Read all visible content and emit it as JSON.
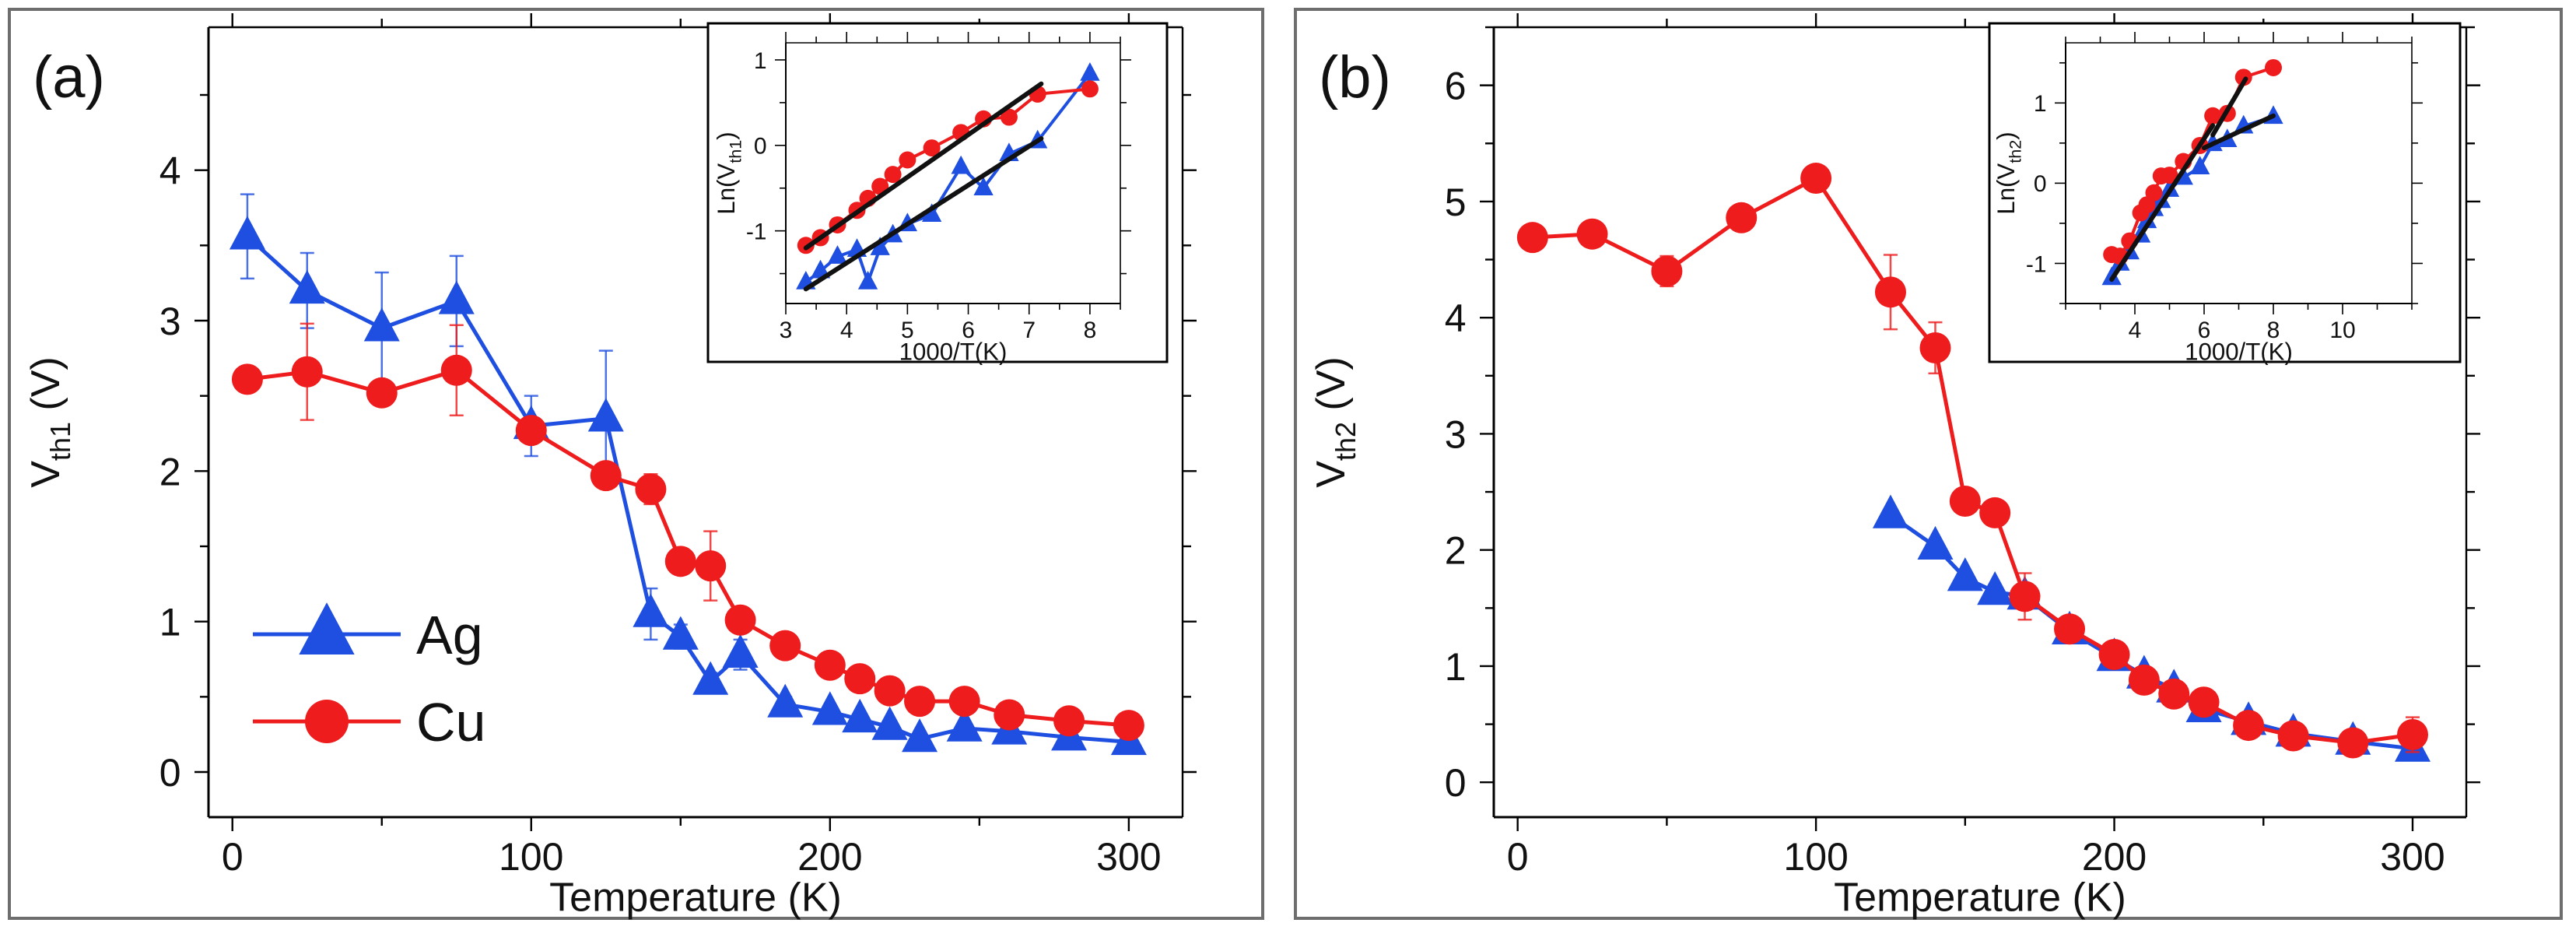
{
  "colors": {
    "ag": "#1f4fe0",
    "cu": "#ee1c1c",
    "fit": "#111111",
    "frame": "#6e6e6e"
  },
  "legend": {
    "entries": [
      {
        "name": "Ag"
      },
      {
        "name": "Cu"
      }
    ]
  },
  "chart_data": [
    {
      "type": "line",
      "panel_label": "(a)",
      "xlabel": "Temperature (K)",
      "ylabel": {
        "base": "V",
        "sub": "th1",
        "suffix": " (V)"
      },
      "xlim": [
        -8,
        318
      ],
      "ylim": [
        -0.3,
        4.95
      ],
      "xticks": [
        0,
        100,
        200,
        300
      ],
      "yticks": [
        0,
        1,
        2,
        3,
        4
      ],
      "series": [
        {
          "name": "Ag",
          "marker": "triangle",
          "x": [
            5,
            25,
            50,
            75,
            100,
            125,
            140,
            150,
            160,
            170,
            185,
            200,
            210,
            220,
            230,
            245,
            260,
            280,
            300
          ],
          "y": [
            3.56,
            3.2,
            2.95,
            3.13,
            2.3,
            2.35,
            1.05,
            0.9,
            0.6,
            0.78,
            0.45,
            0.4,
            0.35,
            0.3,
            0.22,
            0.29,
            0.27,
            0.23,
            0.2
          ],
          "err": [
            0.28,
            0.25,
            0.37,
            0.3,
            0.2,
            0.45,
            0.17,
            0.08,
            0.06,
            0.1,
            0.05,
            0.03,
            0.03,
            0.03,
            0.03,
            0.03,
            0.02,
            0.02,
            0.02
          ]
        },
        {
          "name": "Cu",
          "marker": "circle",
          "x": [
            5,
            25,
            50,
            75,
            100,
            125,
            140,
            150,
            160,
            170,
            185,
            200,
            210,
            220,
            230,
            245,
            260,
            280,
            300
          ],
          "y": [
            2.61,
            2.66,
            2.52,
            2.67,
            2.27,
            1.97,
            1.88,
            1.4,
            1.37,
            1.01,
            0.84,
            0.71,
            0.62,
            0.54,
            0.47,
            0.47,
            0.38,
            0.34,
            0.31
          ],
          "err": [
            0.08,
            0.32,
            0.03,
            0.3,
            0.05,
            0.03,
            0.1,
            0.03,
            0.23,
            0.05,
            0.03,
            0.03,
            0.03,
            0.03,
            0.03,
            0.03,
            0.03,
            0.03,
            0.03
          ]
        }
      ],
      "inset": {
        "xlabel": "1000/T(K)",
        "ylabel": {
          "base": "Ln(V",
          "sub": "th1",
          "suffix": ")"
        },
        "xlim": [
          3,
          8.5
        ],
        "ylim": [
          -1.85,
          1.2
        ],
        "xticks": [
          3,
          4,
          5,
          6,
          7,
          8
        ],
        "yticks": [
          -1,
          0,
          1
        ],
        "series": [
          {
            "name": "Ag",
            "marker": "triangle",
            "x": [
              3.33,
              3.57,
              3.85,
              4.17,
              4.35,
              4.55,
              4.76,
              5.0,
              5.4,
              5.88,
              6.25,
              6.67,
              7.14,
              8.0
            ],
            "y": [
              -1.6,
              -1.47,
              -1.3,
              -1.22,
              -1.6,
              -1.2,
              -1.05,
              -0.92,
              -0.81,
              -0.25,
              -0.5,
              -0.1,
              0.05,
              0.84
            ]
          },
          {
            "name": "Cu",
            "marker": "circle",
            "x": [
              3.33,
              3.57,
              3.85,
              4.17,
              4.35,
              4.55,
              4.76,
              5.0,
              5.4,
              5.88,
              6.25,
              6.67,
              7.14,
              8.0
            ],
            "y": [
              -1.17,
              -1.08,
              -0.93,
              -0.76,
              -0.62,
              -0.48,
              -0.34,
              -0.17,
              -0.03,
              0.15,
              0.31,
              0.33,
              0.6,
              0.66
            ]
          }
        ],
        "fits": [
          {
            "name": "Cu fit",
            "x": [
              3.33,
              7.2
            ],
            "y": [
              -1.2,
              0.72
            ]
          },
          {
            "name": "Ag fit",
            "x": [
              3.33,
              7.2
            ],
            "y": [
              -1.68,
              0.08
            ]
          }
        ]
      }
    },
    {
      "type": "line",
      "panel_label": "(b)",
      "xlabel": "Temperature (K)",
      "ylabel": {
        "base": "V",
        "sub": "th2",
        "suffix": " (V)"
      },
      "xlim": [
        -8,
        318
      ],
      "ylim": [
        -0.3,
        6.5
      ],
      "xticks": [
        0,
        100,
        200,
        300
      ],
      "yticks": [
        0,
        1,
        2,
        3,
        4,
        5,
        6
      ],
      "series": [
        {
          "name": "Ag",
          "marker": "triangle",
          "x": [
            125,
            140,
            150,
            160,
            170,
            185,
            200,
            210,
            220,
            230,
            245,
            260,
            280,
            300
          ],
          "y": [
            2.3,
            2.03,
            1.76,
            1.64,
            1.6,
            1.3,
            1.07,
            0.92,
            0.8,
            0.63,
            0.52,
            0.42,
            0.35,
            0.29
          ],
          "err": [
            0.03,
            0.03,
            0.03,
            0.03,
            0.03,
            0.03,
            0.03,
            0.03,
            0.03,
            0.03,
            0.03,
            0.03,
            0.03,
            0.03
          ]
        },
        {
          "name": "Cu",
          "marker": "circle",
          "x": [
            5,
            25,
            50,
            75,
            100,
            125,
            140,
            150,
            160,
            170,
            185,
            200,
            210,
            220,
            230,
            245,
            260,
            280,
            300
          ],
          "y": [
            4.69,
            4.72,
            4.4,
            4.86,
            5.2,
            4.22,
            3.74,
            2.42,
            2.32,
            1.6,
            1.32,
            1.1,
            0.88,
            0.76,
            0.69,
            0.49,
            0.4,
            0.34,
            0.41
          ],
          "err": [
            0.03,
            0.03,
            0.13,
            0.03,
            0.03,
            0.32,
            0.22,
            0.03,
            0.1,
            0.2,
            0.05,
            0.03,
            0.03,
            0.03,
            0.03,
            0.03,
            0.03,
            0.03,
            0.15
          ]
        }
      ],
      "inset": {
        "xlabel": "1000/T(K)",
        "ylabel": {
          "base": "Ln(V",
          "sub": "th2",
          "suffix": ")"
        },
        "xlim": [
          2,
          12
        ],
        "ylim": [
          -1.5,
          1.75
        ],
        "xticks": [
          4,
          6,
          8,
          10
        ],
        "yticks": [
          -1,
          0,
          1
        ],
        "series": [
          {
            "name": "Ag",
            "marker": "triangle",
            "x": [
              3.33,
              3.57,
              3.85,
              4.17,
              4.35,
              4.55,
              4.76,
              5.0,
              5.4,
              5.88,
              6.25,
              6.67,
              7.14,
              8.0
            ],
            "y": [
              -1.18,
              -1.0,
              -0.86,
              -0.65,
              -0.47,
              -0.32,
              -0.22,
              -0.08,
              0.07,
              0.2,
              0.49,
              0.54,
              0.71,
              0.83
            ]
          },
          {
            "name": "Cu",
            "marker": "circle",
            "x": [
              3.33,
              3.57,
              3.85,
              4.17,
              4.35,
              4.55,
              4.76,
              5.0,
              5.4,
              5.88,
              6.25,
              6.67,
              7.14,
              8.0
            ],
            "y": [
              -0.89,
              -0.91,
              -0.72,
              -0.37,
              -0.27,
              -0.12,
              0.09,
              0.1,
              0.27,
              0.47,
              0.84,
              0.87,
              1.32,
              1.44
            ]
          }
        ],
        "fits": [
          {
            "name": "low-T fit",
            "x": [
              3.33,
              6.25
            ],
            "y": [
              -1.2,
              0.72
            ]
          },
          {
            "name": "Ag high-T fit",
            "x": [
              6.0,
              8.0
            ],
            "y": [
              0.44,
              0.84
            ]
          },
          {
            "name": "Cu high-T fit",
            "x": [
              6.25,
              7.2
            ],
            "y": [
              0.6,
              1.3
            ]
          }
        ]
      }
    }
  ]
}
